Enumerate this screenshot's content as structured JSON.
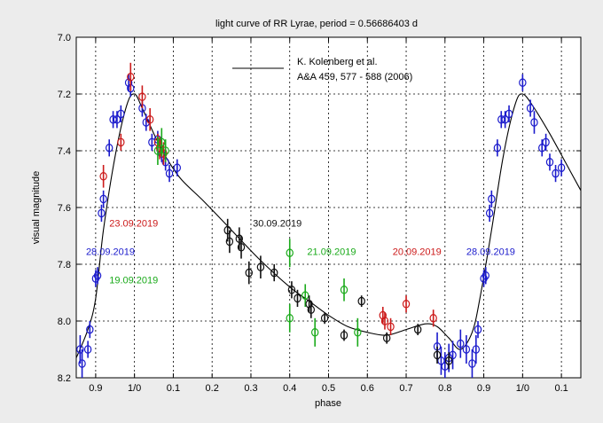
{
  "chart_data": {
    "type": "scatter",
    "title": "light curve of RR Lyrae,  period = 0.56686403 d",
    "xlabel": "phase",
    "ylabel": "visual magnitude",
    "x_range_continuous_phase": [
      0.85,
      2.15
    ],
    "x_tick_values": [
      0.9,
      1.0,
      1.1,
      1.2,
      1.3,
      1.4,
      1.5,
      1.6,
      1.7,
      1.8,
      1.9,
      2.0,
      2.1
    ],
    "x_tick_labels": [
      "0.9",
      "1/0",
      "0.1",
      "0.2",
      "0.3",
      "0.4",
      "0.5",
      "0.6",
      "0.7",
      "0.8",
      "0.9",
      "1/0",
      "0.1"
    ],
    "ylim": [
      8.2,
      7.0
    ],
    "y_inverted": true,
    "y_ticks": [
      "7.0",
      "7.2",
      "7.4",
      "7.6",
      "7.8",
      "8.0",
      "8.2"
    ],
    "grid": true,
    "legend": {
      "placement": "top-center",
      "entries": [
        {
          "label_line1": "K. Kolenberg et al.",
          "label_line2": "A&A 459, 577 - 588 (2006)",
          "color": "#000000"
        }
      ]
    },
    "model_curve": {
      "name": "K. Kolenberg et al.",
      "color": "#000000",
      "x": [
        0.85,
        0.88,
        0.9,
        0.92,
        0.95,
        0.98,
        1.0,
        1.02,
        1.05,
        1.08,
        1.12,
        1.18,
        1.25,
        1.32,
        1.4,
        1.45,
        1.5,
        1.55,
        1.6,
        1.65,
        1.7,
        1.75,
        1.78,
        1.81,
        1.84,
        1.87,
        1.89,
        1.92,
        1.95,
        1.98,
        2.0,
        2.03,
        2.07,
        2.11,
        2.15
      ],
      "y": [
        8.13,
        8.03,
        7.92,
        7.68,
        7.42,
        7.24,
        7.2,
        7.25,
        7.34,
        7.42,
        7.5,
        7.58,
        7.68,
        7.78,
        7.88,
        7.93,
        7.98,
        8.02,
        8.04,
        8.05,
        8.03,
        8.01,
        8.02,
        8.06,
        8.1,
        8.04,
        7.92,
        7.68,
        7.42,
        7.24,
        7.2,
        7.25,
        7.34,
        7.44,
        7.54
      ]
    },
    "series": [
      {
        "label": "28.09.2019",
        "color": "#1a1acc",
        "points": [
          [
            0.86,
            8.1,
            0.05
          ],
          [
            0.865,
            8.15,
            0.05
          ],
          [
            0.88,
            8.1,
            0.03
          ],
          [
            0.885,
            8.03,
            0.03
          ],
          [
            0.9,
            7.85,
            0.03
          ],
          [
            0.905,
            7.84,
            0.03
          ],
          [
            0.915,
            7.62,
            0.03
          ],
          [
            0.92,
            7.57,
            0.03
          ],
          [
            0.935,
            7.39,
            0.03
          ],
          [
            0.945,
            7.29,
            0.03
          ],
          [
            0.955,
            7.29,
            0.03
          ],
          [
            0.965,
            7.27,
            0.03
          ],
          [
            0.985,
            7.16,
            0.03
          ],
          [
            0.99,
            7.18,
            0.03
          ],
          [
            1.02,
            7.25,
            0.03
          ],
          [
            1.03,
            7.3,
            0.03
          ],
          [
            1.045,
            7.37,
            0.03
          ],
          [
            1.06,
            7.36,
            0.03
          ],
          [
            1.07,
            7.41,
            0.03
          ],
          [
            1.08,
            7.44,
            0.03
          ],
          [
            1.09,
            7.48,
            0.03
          ],
          [
            1.11,
            7.46,
            0.03
          ],
          [
            1.78,
            8.09,
            0.05
          ],
          [
            1.79,
            8.14,
            0.05
          ],
          [
            1.8,
            8.16,
            0.05
          ],
          [
            1.81,
            8.13,
            0.05
          ],
          [
            1.82,
            8.12,
            0.05
          ],
          [
            1.84,
            8.08,
            0.05
          ],
          [
            1.855,
            8.1,
            0.05
          ],
          [
            1.87,
            8.15,
            0.05
          ],
          [
            1.88,
            8.1,
            0.05
          ],
          [
            1.885,
            8.03,
            0.03
          ],
          [
            1.9,
            7.85,
            0.03
          ],
          [
            1.905,
            7.84,
            0.03
          ],
          [
            1.915,
            7.62,
            0.03
          ],
          [
            1.92,
            7.57,
            0.03
          ],
          [
            1.935,
            7.39,
            0.03
          ],
          [
            1.945,
            7.29,
            0.03
          ],
          [
            1.955,
            7.29,
            0.03
          ],
          [
            1.965,
            7.27,
            0.03
          ],
          [
            2.0,
            7.16,
            0.03
          ],
          [
            2.02,
            7.25,
            0.03
          ],
          [
            2.03,
            7.3,
            0.04
          ],
          [
            2.05,
            7.39,
            0.03
          ],
          [
            2.06,
            7.37,
            0.03
          ],
          [
            2.07,
            7.44,
            0.03
          ],
          [
            2.085,
            7.48,
            0.03
          ],
          [
            2.1,
            7.46,
            0.03
          ]
        ]
      },
      {
        "label": "23.09.2019",
        "color": "#cc1a1a",
        "points": [
          [
            0.92,
            7.49,
            0.04
          ],
          [
            0.965,
            7.37,
            0.03
          ],
          [
            0.99,
            7.14,
            0.05
          ],
          [
            1.02,
            7.21,
            0.04
          ],
          [
            1.04,
            7.29,
            0.04
          ],
          [
            1.06,
            7.37,
            0.03
          ],
          [
            1.065,
            7.39,
            0.04
          ],
          [
            1.075,
            7.41,
            0.04
          ]
        ]
      },
      {
        "label": "20.09.2019",
        "color": "#cc1a1a",
        "points": [
          [
            1.64,
            7.98,
            0.03
          ],
          [
            1.645,
            8.0,
            0.03
          ],
          [
            1.66,
            8.02,
            0.03
          ],
          [
            1.7,
            7.94,
            0.03
          ],
          [
            1.77,
            7.99,
            0.03
          ]
        ]
      },
      {
        "label": "19.09.2019",
        "color": "#1aaa1a",
        "points": [
          [
            1.06,
            7.4,
            0.05
          ],
          [
            1.07,
            7.37,
            0.05
          ],
          [
            1.08,
            7.4,
            0.04
          ]
        ]
      },
      {
        "label": "21.09.2019",
        "color": "#1aaa1a",
        "points": [
          [
            1.4,
            7.76,
            0.05
          ],
          [
            1.4,
            7.99,
            0.05
          ],
          [
            1.44,
            7.91,
            0.04
          ],
          [
            1.465,
            8.04,
            0.05
          ],
          [
            1.54,
            7.89,
            0.04
          ],
          [
            1.575,
            8.04,
            0.05
          ]
        ]
      },
      {
        "label": "30.09.2019",
        "color": "#111111",
        "points": [
          [
            1.24,
            7.68,
            0.04
          ],
          [
            1.245,
            7.72,
            0.04
          ],
          [
            1.27,
            7.71,
            0.04
          ],
          [
            1.275,
            7.74,
            0.04
          ],
          [
            1.295,
            7.83,
            0.04
          ],
          [
            1.325,
            7.81,
            0.04
          ],
          [
            1.36,
            7.83,
            0.03
          ],
          [
            1.405,
            7.89,
            0.03
          ],
          [
            1.42,
            7.92,
            0.03
          ],
          [
            1.45,
            7.94,
            0.03
          ],
          [
            1.455,
            7.96,
            0.03
          ],
          [
            1.49,
            7.99,
            0.02
          ],
          [
            1.54,
            8.05,
            0.02
          ],
          [
            1.585,
            7.93,
            0.02
          ],
          [
            1.65,
            8.06,
            0.02
          ],
          [
            1.73,
            8.03,
            0.02
          ],
          [
            1.78,
            8.12,
            0.03
          ],
          [
            1.81,
            8.14,
            0.03
          ]
        ]
      }
    ],
    "annotations": [
      {
        "text": "23.09.2019",
        "color": "#cc1a1a",
        "x": 0.935,
        "y": 7.655
      },
      {
        "text": "28.09.2019",
        "color": "#1a1acc",
        "x": 0.875,
        "y": 7.755
      },
      {
        "text": "19.09.2019",
        "color": "#1aaa1a",
        "x": 0.935,
        "y": 7.855
      },
      {
        "text": "30.09.2019",
        "color": "#111111",
        "x": 1.305,
        "y": 7.655
      },
      {
        "text": "21.09.2019",
        "color": "#1aaa1a",
        "x": 1.445,
        "y": 7.755
      },
      {
        "text": "20.09.2019",
        "color": "#cc1a1a",
        "x": 1.665,
        "y": 7.755
      },
      {
        "text": "28.09.2019",
        "color": "#1a1acc",
        "x": 1.855,
        "y": 7.755
      }
    ]
  }
}
